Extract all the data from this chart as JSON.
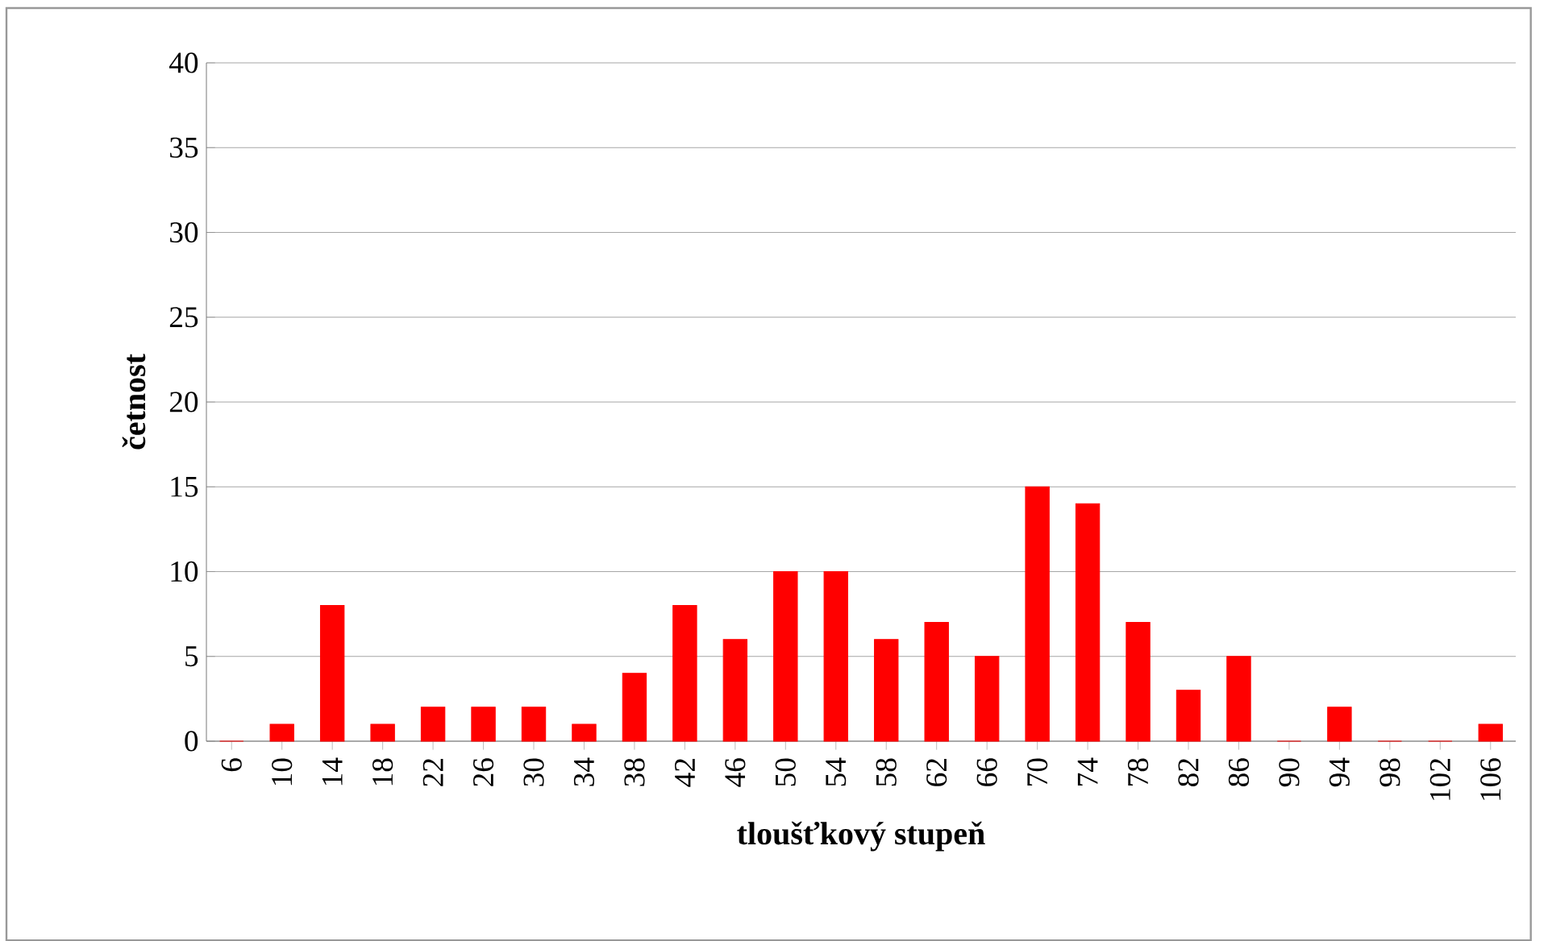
{
  "chart_data": {
    "type": "bar",
    "xlabel": "tloušťkový stupeň",
    "ylabel": "četnost",
    "categories": [
      "6",
      "10",
      "14",
      "18",
      "22",
      "26",
      "30",
      "34",
      "38",
      "42",
      "46",
      "50",
      "54",
      "58",
      "62",
      "66",
      "70",
      "74",
      "78",
      "82",
      "86",
      "90",
      "94",
      "98",
      "102",
      "106"
    ],
    "values": [
      0,
      1,
      8,
      1,
      2,
      2,
      2,
      1,
      4,
      8,
      6,
      10,
      10,
      6,
      7,
      5,
      15,
      14,
      7,
      3,
      5,
      0,
      2,
      0,
      0,
      1
    ],
    "color": "#ff0000",
    "ylim": [
      0,
      40
    ],
    "yticks": [
      0,
      5,
      10,
      15,
      20,
      25,
      30,
      35,
      40
    ],
    "grid": "y"
  }
}
